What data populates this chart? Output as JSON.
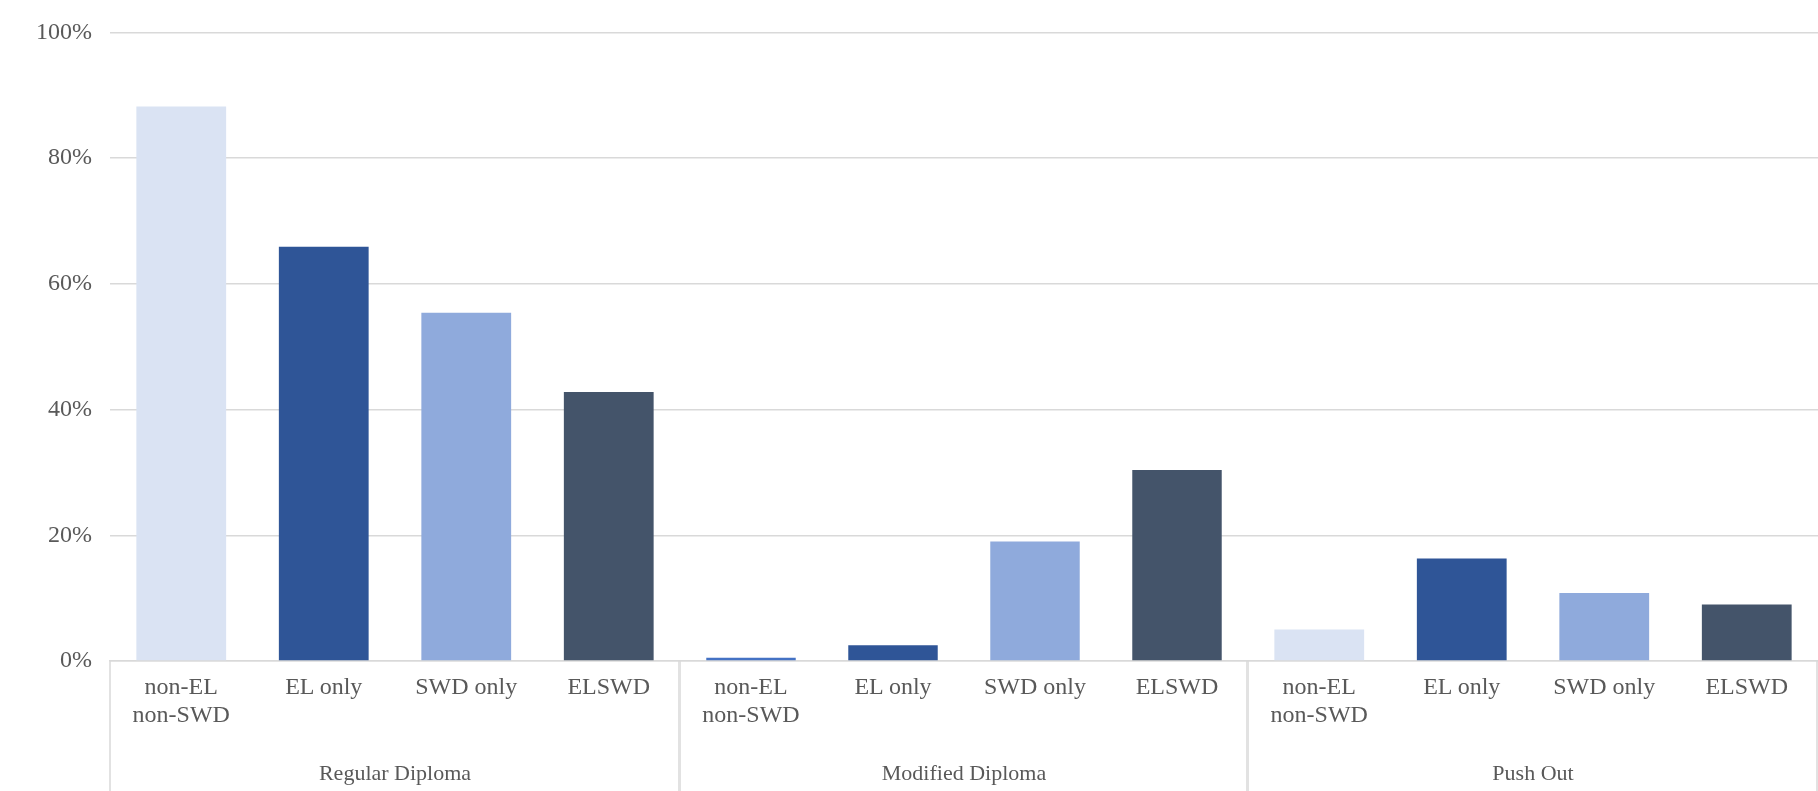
{
  "chart_data": [
    {
      "type": "bar",
      "xlabel": "Regular Diploma",
      "categories": [
        "non-EL\nnon-SWD",
        "EL only",
        "SWD only",
        "ELSWD"
      ],
      "values": [
        88.2,
        65.9,
        55.4,
        42.8
      ],
      "colors": [
        "#dae3f3",
        "#2f5597",
        "#8faadc",
        "#44546a"
      ],
      "ylim": [
        0,
        100
      ],
      "yticks": [
        {
          "value": 0,
          "label": "0%"
        },
        {
          "value": 20,
          "label": "20%"
        },
        {
          "value": 40,
          "label": "40%"
        },
        {
          "value": 60,
          "label": "60%"
        },
        {
          "value": 80,
          "label": "80%"
        },
        {
          "value": 100,
          "label": "100%"
        }
      ],
      "grid": "y"
    },
    {
      "type": "bar",
      "xlabel": "Modified Diploma",
      "categories": [
        "non-EL\nnon-SWD",
        "EL only",
        "SWD only",
        "ELSWD"
      ],
      "values": [
        0.5,
        2.5,
        19.0,
        30.4
      ],
      "colors": [
        "#4472c4",
        "#2f5597",
        "#8faadc",
        "#44546a"
      ],
      "ylim": [
        0,
        100
      ],
      "yticks": [
        0,
        20,
        40,
        60,
        80,
        100
      ],
      "grid": "y",
      "tick_labels": "x"
    },
    {
      "type": "bar",
      "xlabel": "Push Out",
      "categories": [
        "non-EL\nnon-SWD",
        "EL only",
        "SWD only",
        "ELSWD"
      ],
      "values": [
        5.0,
        16.3,
        10.8,
        9.0
      ],
      "colors": [
        "#dae3f3",
        "#2f5597",
        "#8faadc",
        "#44546a"
      ],
      "ylim": [
        0,
        100
      ],
      "yticks": [
        0,
        20,
        40,
        60,
        80,
        100
      ],
      "grid": "y",
      "tick_labels": "x"
    }
  ]
}
